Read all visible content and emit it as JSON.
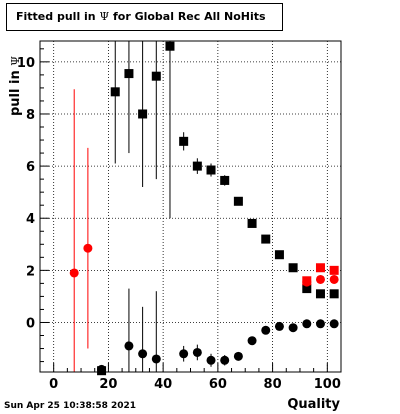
{
  "title_prefix": "Fitted pull in ",
  "title_symbol": "Ψ",
  "title_suffix": " for Global Rec All NoHits",
  "timestamp": "Sun Apr 25 10:38:58 2021",
  "chart_data": {
    "type": "scatter",
    "xlabel": "Quality",
    "ylabel_text": "pull in ",
    "ylabel_symbol": "Ψ",
    "xlim": [
      -5,
      105
    ],
    "ylim": [
      -1.9,
      10.8
    ],
    "xticks": [
      0,
      20,
      40,
      60,
      80,
      100
    ],
    "yticks": [
      0,
      2,
      4,
      6,
      8,
      10
    ],
    "grid": true,
    "series": [
      {
        "marker": "square",
        "color": "#000000",
        "points": [
          {
            "x": 22.5,
            "y": 8.85,
            "lo": 6.1,
            "hi": 10.8
          },
          {
            "x": 27.5,
            "y": 9.55,
            "lo": 6.5,
            "hi": 10.8
          },
          {
            "x": 32.5,
            "y": 8.0,
            "lo": 5.2,
            "hi": 10.8
          },
          {
            "x": 37.5,
            "y": 9.45,
            "lo": 5.5,
            "hi": 10.8
          },
          {
            "x": 42.5,
            "y": 10.6,
            "lo": 4.0,
            "hi": 10.8
          },
          {
            "x": 47.5,
            "y": 6.95,
            "lo": 6.6,
            "hi": 7.3
          },
          {
            "x": 52.5,
            "y": 6.0,
            "lo": 5.7,
            "hi": 6.3
          },
          {
            "x": 57.5,
            "y": 5.85,
            "lo": 5.6,
            "hi": 6.1
          },
          {
            "x": 62.5,
            "y": 5.45,
            "lo": 5.25,
            "hi": 5.65
          },
          {
            "x": 67.5,
            "y": 4.65,
            "lo": 4.5,
            "hi": 4.8
          },
          {
            "x": 72.5,
            "y": 3.8,
            "lo": 3.7,
            "hi": 3.9
          },
          {
            "x": 77.5,
            "y": 3.2,
            "lo": 3.1,
            "hi": 3.3
          },
          {
            "x": 82.5,
            "y": 2.6,
            "lo": 2.5,
            "hi": 2.7
          },
          {
            "x": 87.5,
            "y": 2.1,
            "lo": 2.0,
            "hi": 2.2
          },
          {
            "x": 92.5,
            "y": 1.3,
            "lo": 1.2,
            "hi": 1.4
          },
          {
            "x": 97.5,
            "y": 1.1,
            "lo": 1.0,
            "hi": 1.2
          },
          {
            "x": 102.5,
            "y": 1.1,
            "lo": 1.0,
            "hi": 1.2
          },
          {
            "x": 17.5,
            "y": -1.85,
            "lo": -1.9,
            "hi": -1.8
          }
        ]
      },
      {
        "marker": "circle",
        "color": "#000000",
        "points": [
          {
            "x": 17.5,
            "y": -1.8,
            "lo": -1.9,
            "hi": -1.7
          },
          {
            "x": 27.5,
            "y": -0.9,
            "lo": -1.9,
            "hi": 1.3
          },
          {
            "x": 32.5,
            "y": -1.2,
            "lo": -1.9,
            "hi": 0.6
          },
          {
            "x": 37.5,
            "y": -1.4,
            "lo": -1.9,
            "hi": 1.2
          },
          {
            "x": 47.5,
            "y": -1.2,
            "lo": -1.5,
            "hi": -0.9
          },
          {
            "x": 52.5,
            "y": -1.15,
            "lo": -1.45,
            "hi": -0.85
          },
          {
            "x": 57.5,
            "y": -1.45,
            "lo": -1.7,
            "hi": -1.2
          },
          {
            "x": 62.5,
            "y": -1.45,
            "lo": -1.65,
            "hi": -1.25
          },
          {
            "x": 67.5,
            "y": -1.3,
            "lo": -1.45,
            "hi": -1.15
          },
          {
            "x": 72.5,
            "y": -0.7,
            "lo": -0.8,
            "hi": -0.6
          },
          {
            "x": 77.5,
            "y": -0.3,
            "lo": -0.38,
            "hi": -0.22
          },
          {
            "x": 82.5,
            "y": -0.15,
            "lo": -0.23,
            "hi": -0.07
          },
          {
            "x": 87.5,
            "y": -0.2,
            "lo": -0.27,
            "hi": -0.13
          },
          {
            "x": 92.5,
            "y": -0.05,
            "lo": -0.12,
            "hi": 0.02
          },
          {
            "x": 97.5,
            "y": -0.05,
            "lo": -0.12,
            "hi": 0.02
          },
          {
            "x": 102.5,
            "y": -0.05,
            "lo": -0.12,
            "hi": 0.02
          }
        ]
      },
      {
        "marker": "circle",
        "color": "#ff0000",
        "points": [
          {
            "x": 7.5,
            "y": 1.9,
            "lo": -1.9,
            "hi": 8.95
          },
          {
            "x": 12.5,
            "y": 2.85,
            "lo": -1.0,
            "hi": 6.7
          },
          {
            "x": 92.5,
            "y": 1.55,
            "lo": 1.45,
            "hi": 1.65
          },
          {
            "x": 97.5,
            "y": 1.65,
            "lo": 1.55,
            "hi": 1.75
          },
          {
            "x": 102.5,
            "y": 1.65,
            "lo": 1.55,
            "hi": 1.75
          }
        ]
      },
      {
        "marker": "square",
        "color": "#ff0000",
        "points": [
          {
            "x": 92.5,
            "y": 1.6,
            "lo": 1.5,
            "hi": 1.7
          },
          {
            "x": 97.5,
            "y": 2.1,
            "lo": 2.0,
            "hi": 2.2
          },
          {
            "x": 102.5,
            "y": 2.0,
            "lo": 1.9,
            "hi": 2.1
          }
        ]
      }
    ]
  }
}
